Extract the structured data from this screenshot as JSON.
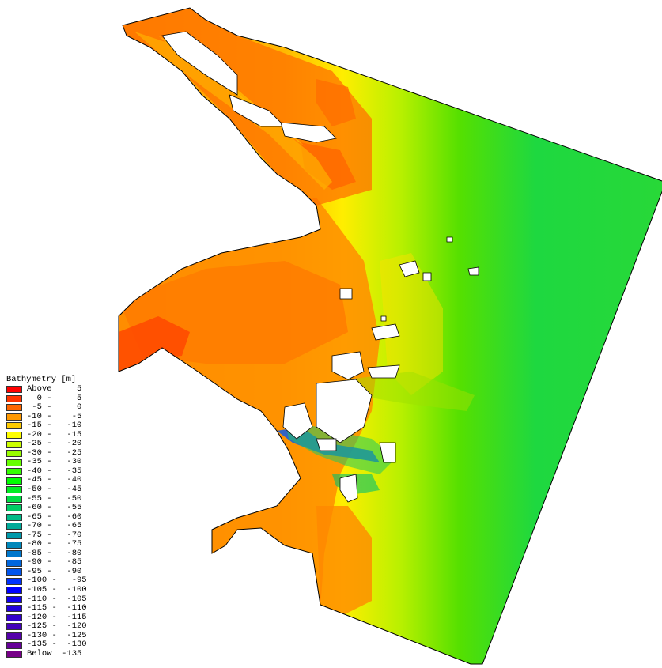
{
  "legend": {
    "title": "Bathymetry [m]",
    "items": [
      {
        "label": "Above     5",
        "color": "#ff0000"
      },
      {
        "label": "  0 -     5",
        "color": "#ff3300"
      },
      {
        "label": " -5 -     0",
        "color": "#ff6600"
      },
      {
        "label": "-10 -    -5",
        "color": "#ff9900"
      },
      {
        "label": "-15 -   -10",
        "color": "#ffcc00"
      },
      {
        "label": "-20 -   -15",
        "color": "#ffff00"
      },
      {
        "label": "-25 -   -20",
        "color": "#ccff00"
      },
      {
        "label": "-30 -   -25",
        "color": "#99ff00"
      },
      {
        "label": "-35 -   -30",
        "color": "#66ff00"
      },
      {
        "label": "-40 -   -35",
        "color": "#33ff00"
      },
      {
        "label": "-45 -   -40",
        "color": "#00ff00"
      },
      {
        "label": "-50 -   -45",
        "color": "#00ee22"
      },
      {
        "label": "-55 -   -50",
        "color": "#00dd44"
      },
      {
        "label": "-60 -   -55",
        "color": "#00cc66"
      },
      {
        "label": "-65 -   -60",
        "color": "#00bb88"
      },
      {
        "label": "-70 -   -65",
        "color": "#00aa99"
      },
      {
        "label": "-75 -   -70",
        "color": "#0099aa"
      },
      {
        "label": "-80 -   -75",
        "color": "#0088bb"
      },
      {
        "label": "-85 -   -80",
        "color": "#0077cc"
      },
      {
        "label": "-90 -   -85",
        "color": "#0066dd"
      },
      {
        "label": "-95 -   -90",
        "color": "#0055ee"
      },
      {
        "label": "-100 -   -95",
        "color": "#0033ff"
      },
      {
        "label": "-105 -  -100",
        "color": "#0000ff"
      },
      {
        "label": "-110 -  -105",
        "color": "#1100ee"
      },
      {
        "label": "-115 -  -110",
        "color": "#2200dd"
      },
      {
        "label": "-120 -  -115",
        "color": "#3300cc"
      },
      {
        "label": "-125 -  -120",
        "color": "#4400bb"
      },
      {
        "label": "-130 -  -125",
        "color": "#5500aa"
      },
      {
        "label": "-135 -  -130",
        "color": "#660099"
      },
      {
        "label": "Below  -135",
        "color": "#770088"
      }
    ]
  }
}
